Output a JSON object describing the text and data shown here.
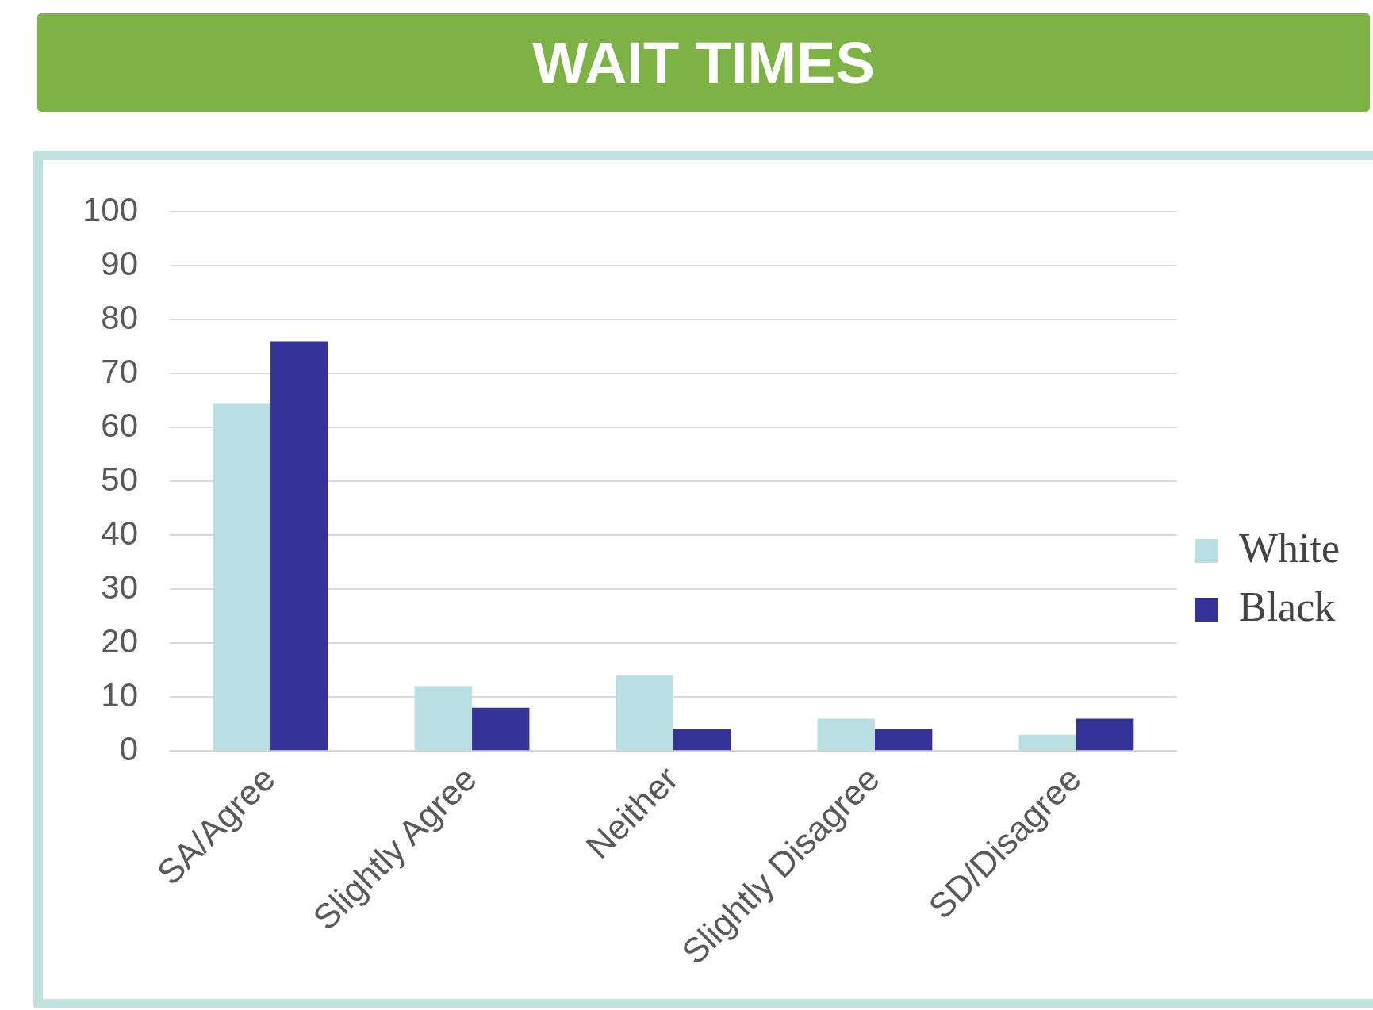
{
  "chart_data": {
    "type": "bar",
    "title": "WAIT TIMES",
    "categories": [
      "SA/Agree",
      "Slightly Agree",
      "Neither",
      "Slightly Disagree",
      "SD/Disagree"
    ],
    "series": [
      {
        "name": "White",
        "color": "#b9dfe2",
        "values": [
          64.5,
          12,
          14,
          6,
          3
        ]
      },
      {
        "name": "Black",
        "color": "#353399",
        "values": [
          76,
          8,
          4,
          4,
          6
        ]
      }
    ],
    "ylim": [
      0,
      100
    ],
    "yticks": [
      0,
      10,
      20,
      30,
      40,
      50,
      60,
      70,
      80,
      90,
      100
    ],
    "grid": "y",
    "legend": "right"
  }
}
